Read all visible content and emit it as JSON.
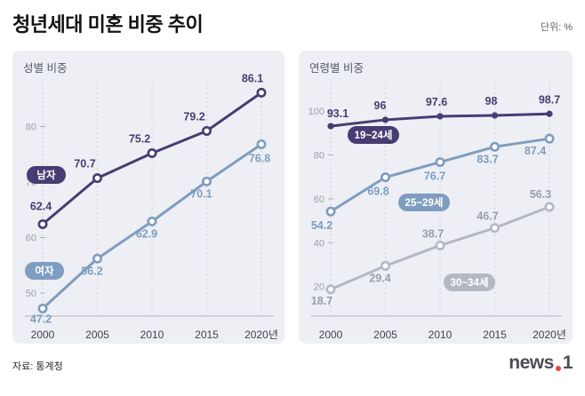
{
  "header": {
    "title": "청년세대 미혼 비중 추이",
    "unit": "단위: %"
  },
  "footer": {
    "source": "자료: 통계청",
    "logo": {
      "news": "news",
      "one": "1"
    }
  },
  "chart_data": [
    {
      "type": "line",
      "title": "성별 비중",
      "categories": [
        "2000",
        "2005",
        "2010",
        "2015",
        "2020년"
      ],
      "ylim": [
        45,
        90
      ],
      "yticks": [
        50,
        60,
        70,
        80
      ],
      "grid": "vertical-dashed",
      "legend_position": "inline-pills",
      "series": [
        {
          "name": "남자",
          "color": "#483c72",
          "marker": "open",
          "values": [
            62.4,
            70.7,
            75.2,
            79.2,
            86.1
          ],
          "labels": [
            "62.4",
            "70.7",
            "75.2",
            "79.2",
            "86.1"
          ]
        },
        {
          "name": "여자",
          "color": "#7f9dc0",
          "marker": "open",
          "values": [
            47.2,
            56.2,
            62.9,
            70.1,
            76.8
          ],
          "labels": [
            "47.2",
            "56.2",
            "62.9",
            "70.1",
            "76.8"
          ]
        }
      ]
    },
    {
      "type": "line",
      "title": "연령별 비중",
      "categories": [
        "2000",
        "2005",
        "2010",
        "2015",
        "2020년"
      ],
      "ylim": [
        5,
        105
      ],
      "yticks": [
        20,
        40,
        60,
        80,
        100
      ],
      "grid": "vertical-dashed",
      "legend_position": "inline-pills",
      "series": [
        {
          "name": "19~24세",
          "color": "#483c72",
          "marker": "filled",
          "values": [
            93.1,
            96,
            97.6,
            98,
            98.7
          ],
          "labels": [
            "93.1",
            "96",
            "97.6",
            "98",
            "98.7"
          ]
        },
        {
          "name": "25~29세",
          "color": "#7f9dc0",
          "marker": "open",
          "values": [
            54.2,
            69.8,
            76.7,
            83.7,
            87.4
          ],
          "labels": [
            "54.2",
            "69.8",
            "76.7",
            "83.7",
            "87.4"
          ]
        },
        {
          "name": "30~34세",
          "color": "#b4b8c2",
          "label_color": "#979da7",
          "marker": "open",
          "values": [
            18.7,
            29.4,
            38.7,
            46.7,
            56.3
          ],
          "labels": [
            "18.7",
            "29.4",
            "38.7",
            "46.7",
            "56.3"
          ]
        }
      ]
    }
  ]
}
